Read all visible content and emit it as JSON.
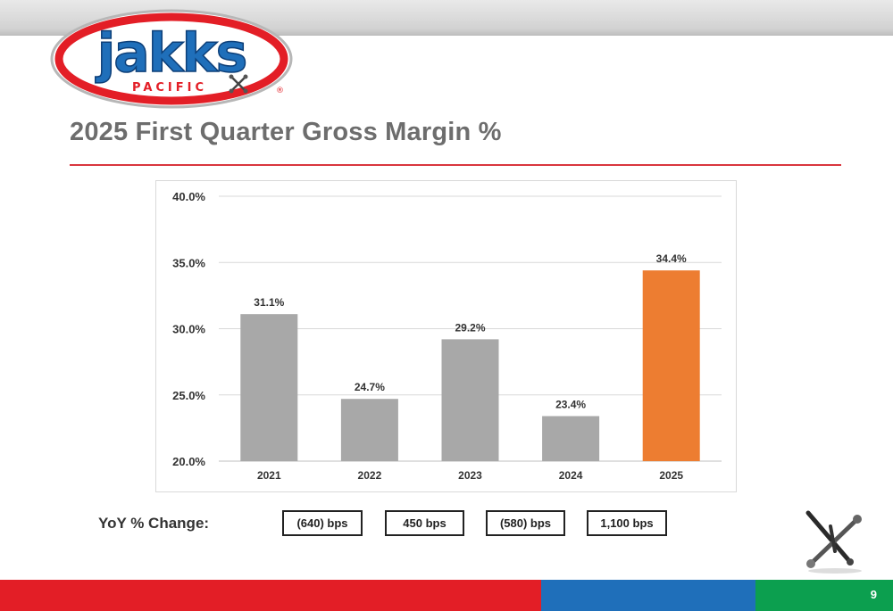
{
  "brand": {
    "wordmark": "jakks",
    "sub": "PACIFIC",
    "registered": "®",
    "colors": {
      "red": "#e31e26",
      "blue": "#1f6fba",
      "green": "#0c9f4f",
      "bar_gray": "#a8a8a8",
      "bar_orange": "#ed7d31"
    }
  },
  "slide": {
    "title": "2025 First Quarter Gross Margin %",
    "page_number": "9"
  },
  "chart_data": {
    "type": "bar",
    "categories": [
      "2021",
      "2022",
      "2023",
      "2024",
      "2025"
    ],
    "values": [
      31.1,
      24.7,
      29.2,
      23.4,
      34.4
    ],
    "data_labels": [
      "31.1%",
      "24.7%",
      "29.2%",
      "23.4%",
      "34.4%"
    ],
    "bar_colors": [
      "#a8a8a8",
      "#a8a8a8",
      "#a8a8a8",
      "#a8a8a8",
      "#ed7d31"
    ],
    "ylim": [
      20,
      40
    ],
    "yticks": [
      20,
      25,
      30,
      35,
      40
    ],
    "ytick_labels": [
      "20.0%",
      "25.0%",
      "30.0%",
      "35.0%",
      "40.0%"
    ],
    "grid": true,
    "title": "",
    "xlabel": "",
    "ylabel": ""
  },
  "yoy": {
    "label": "YoY % Change:",
    "values": [
      "(640) bps",
      "450 bps",
      "(580) bps",
      "1,100 bps"
    ]
  }
}
